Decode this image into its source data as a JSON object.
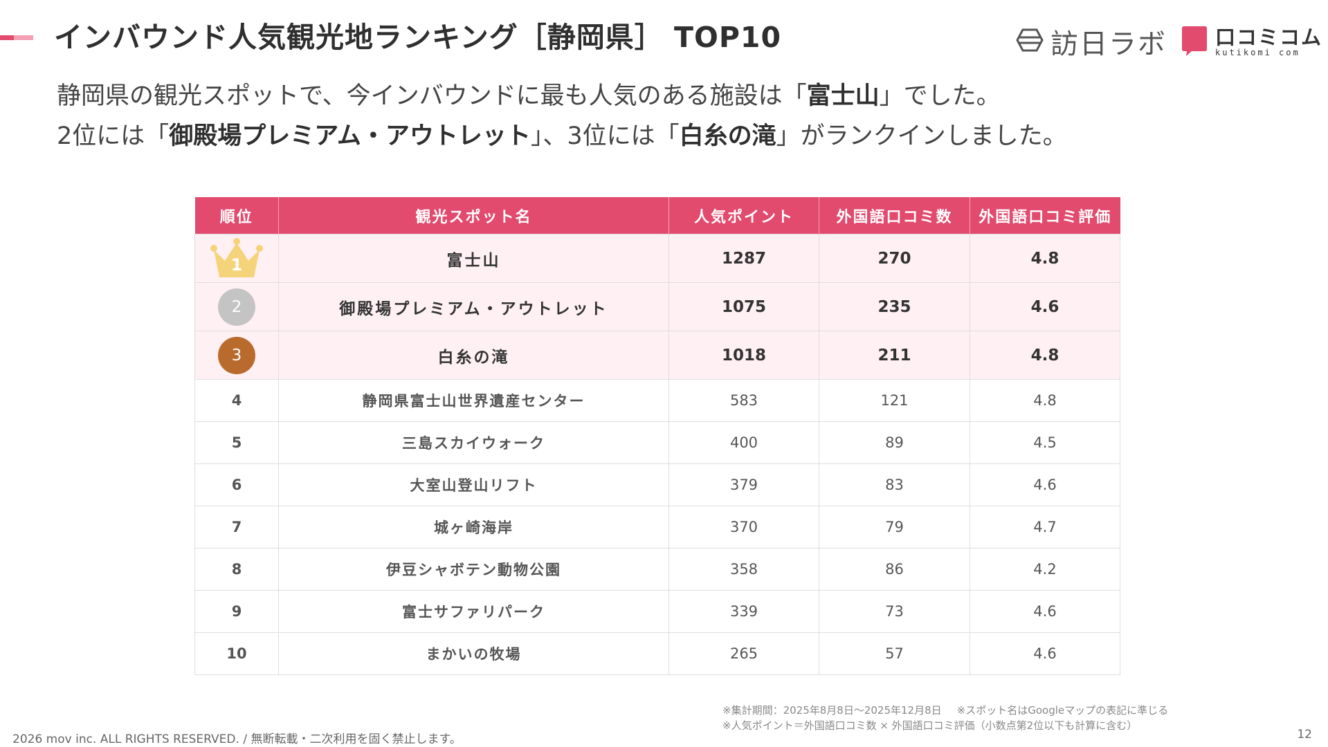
{
  "header": {
    "title": "インバウンド人気観光地ランキング［静岡県］ TOP10",
    "logo_houjin_text": "訪日ラボ",
    "logo_kutikomi_text": "口コミコム",
    "logo_kutikomi_sub": "kutikomi com",
    "accent_color": "#e24a6e"
  },
  "intro": {
    "line1_pre": "静岡県の観光スポットで、今インバウンドに最も人気のある施設は「",
    "line1_bold": "富士山",
    "line1_post": "」でした。",
    "line2_pre": "2位には「",
    "line2_bold1": "御殿場プレミアム・アウトレット",
    "line2_mid": "」、3位には「",
    "line2_bold2": "白糸の滝",
    "line2_post": "」がランクインしました。"
  },
  "table": {
    "headers": [
      "順位",
      "観光スポット名",
      "人気ポイント",
      "外国語口コミ数",
      "外国語口コミ評価"
    ],
    "rows": [
      {
        "rank": "1",
        "name": "富士山",
        "points": "1287",
        "reviews": "270",
        "rating": "4.8"
      },
      {
        "rank": "2",
        "name": "御殿場プレミアム・アウトレット",
        "points": "1075",
        "reviews": "235",
        "rating": "4.6"
      },
      {
        "rank": "3",
        "name": "白糸の滝",
        "points": "1018",
        "reviews": "211",
        "rating": "4.8"
      },
      {
        "rank": "4",
        "name": "静岡県富士山世界遺産センター",
        "points": "583",
        "reviews": "121",
        "rating": "4.8"
      },
      {
        "rank": "5",
        "name": "三島スカイウォーク",
        "points": "400",
        "reviews": "89",
        "rating": "4.5"
      },
      {
        "rank": "6",
        "name": "大室山登山リフト",
        "points": "379",
        "reviews": "83",
        "rating": "4.6"
      },
      {
        "rank": "7",
        "name": "城ヶ崎海岸",
        "points": "370",
        "reviews": "79",
        "rating": "4.7"
      },
      {
        "rank": "8",
        "name": "伊豆シャボテン動物公園",
        "points": "358",
        "reviews": "86",
        "rating": "4.2"
      },
      {
        "rank": "9",
        "name": "富士サファリパーク",
        "points": "339",
        "reviews": "73",
        "rating": "4.6"
      },
      {
        "rank": "10",
        "name": "まかいの牧場",
        "points": "265",
        "reviews": "57",
        "rating": "4.6"
      }
    ]
  },
  "medals": {
    "gold_icon": "crown-icon",
    "gold_color": "#f5d37a",
    "silver_color": "#c4c4c4",
    "bronze_color": "#b86b2d"
  },
  "footer": {
    "note1a": "※集計期間：2025年8月8日〜2025年12月8日",
    "note1b": "※スポット名はGoogleマップの表記に準じる",
    "note2": "※人気ポイント＝外国語口コミ数 × 外国語口コミ評価（小数点第2位以下も計算に含む）",
    "copyright": "2026 mov inc. ALL RIGHTS RESERVED. / 無断転載・二次利用を固く禁止します。",
    "page_number": "12"
  }
}
